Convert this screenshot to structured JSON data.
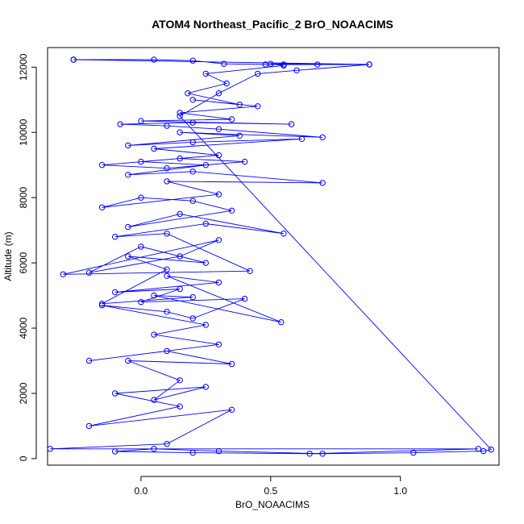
{
  "chart_data": {
    "type": "line",
    "title": "ATOM4 Northeast_Pacific_2 BrO_NOAACIMS",
    "xlabel": "BrO_NOAACIMS",
    "ylabel": "Altitude (m)",
    "xlim": [
      -0.36,
      1.38
    ],
    "ylim": [
      -200,
      12600
    ],
    "xticks": [
      0.0,
      0.5,
      1.0
    ],
    "xtick_labels": [
      "0.0",
      "0.5",
      "1.0"
    ],
    "yticks": [
      0,
      2000,
      4000,
      6000,
      8000,
      10000,
      12000
    ],
    "ytick_labels": [
      "0",
      "2000",
      "4000",
      "6000",
      "8000",
      "10000",
      "12000"
    ],
    "grid": false,
    "colors": {
      "series": "#0000ff"
    },
    "series": [
      {
        "marker": "open-circle",
        "x": [
          -0.26,
          0.05,
          0.2,
          0.32,
          0.48,
          0.55,
          0.68,
          0.88,
          0.6,
          0.45,
          0.3,
          0.15,
          1.35,
          1.32,
          1.05,
          0.7,
          0.3,
          0.05,
          -0.1,
          0.2,
          0.65,
          1.3,
          -0.35,
          0.1,
          0.35,
          -0.2,
          0.15,
          -0.1,
          0.25,
          0.05,
          0.15,
          -0.05,
          0.35,
          0.1,
          -0.2,
          0.3,
          0.05,
          0.25,
          -0.15,
          0.1,
          0.2,
          0.4,
          0.0,
          0.15,
          -0.1,
          0.3,
          0.1,
          0.54,
          0.05,
          0.2,
          -0.15,
          0.1,
          -0.05,
          0.25,
          0.0,
          -0.2,
          0.15,
          0.3,
          -0.3,
          0.42,
          0.1,
          -0.1,
          0.25,
          0.55,
          0.15,
          -0.05,
          0.35,
          0.2,
          0.0,
          -0.15,
          0.3,
          0.1,
          0.7,
          0.2,
          -0.05,
          0.25,
          0.0,
          0.15,
          0.4,
          0.1,
          -0.15,
          0.3,
          0.05,
          0.62,
          0.2,
          -0.05,
          0.38,
          0.15,
          0.7,
          0.3,
          0.1,
          -0.08,
          0.2,
          0.58,
          0.0,
          0.35,
          0.15,
          0.45,
          0.2,
          0.38,
          0.18,
          0.33,
          0.25,
          0.55,
          0.5,
          0.88,
          -0.26
        ],
        "y": [
          12230,
          12230,
          12200,
          12100,
          12080,
          12080,
          12080,
          12080,
          11900,
          11800,
          11200,
          10500,
          280,
          230,
          180,
          150,
          230,
          300,
          220,
          180,
          150,
          300,
          300,
          450,
          1500,
          1000,
          1600,
          2000,
          2200,
          1800,
          2400,
          3000,
          2900,
          3300,
          3000,
          3500,
          3800,
          4100,
          4700,
          4500,
          4300,
          4900,
          4800,
          5200,
          5100,
          5400,
          5600,
          4180,
          5000,
          4950,
          4750,
          5800,
          6200,
          6000,
          6500,
          5700,
          6200,
          6700,
          5650,
          5750,
          6900,
          6800,
          7200,
          6900,
          7500,
          7100,
          7600,
          7900,
          8000,
          7700,
          8100,
          8500,
          8450,
          8800,
          8700,
          9000,
          9100,
          9200,
          9100,
          8900,
          9000,
          9300,
          9500,
          9800,
          9700,
          9600,
          9900,
          10000,
          9850,
          10100,
          10200,
          10250,
          10300,
          10250,
          10350,
          10400,
          10600,
          10800,
          11000,
          10850,
          11200,
          11500,
          11800,
          12050,
          12100,
          12080,
          12230
        ]
      }
    ]
  }
}
